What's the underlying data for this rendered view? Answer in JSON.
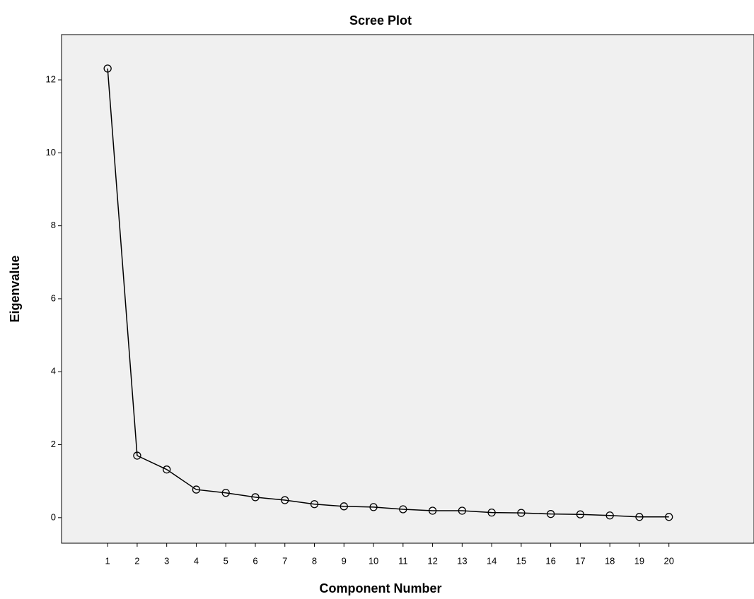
{
  "chart_data": {
    "type": "line",
    "title": "Scree Plot",
    "x_label": "Component Number",
    "y_label": "Eigenvalue",
    "x": [
      1,
      2,
      3,
      4,
      5,
      6,
      7,
      8,
      9,
      10,
      11,
      12,
      13,
      14,
      15,
      16,
      17,
      18,
      19,
      20
    ],
    "values": [
      12.31,
      1.7,
      1.32,
      0.77,
      0.68,
      0.56,
      0.48,
      0.37,
      0.31,
      0.29,
      0.23,
      0.19,
      0.19,
      0.14,
      0.13,
      0.1,
      0.09,
      0.06,
      0.02,
      0.02
    ],
    "color": "#000000",
    "background": "#f0f0f0",
    "xlim": [
      -0.56,
      22.88
    ],
    "ylim": [
      -0.7,
      13.24
    ],
    "xticks": [
      1,
      2,
      3,
      4,
      5,
      6,
      7,
      8,
      9,
      10,
      11,
      12,
      13,
      14,
      15,
      16,
      17,
      18,
      19,
      20
    ],
    "yticks": [
      0,
      2,
      4,
      6,
      8,
      10,
      12
    ],
    "grid": false
  }
}
